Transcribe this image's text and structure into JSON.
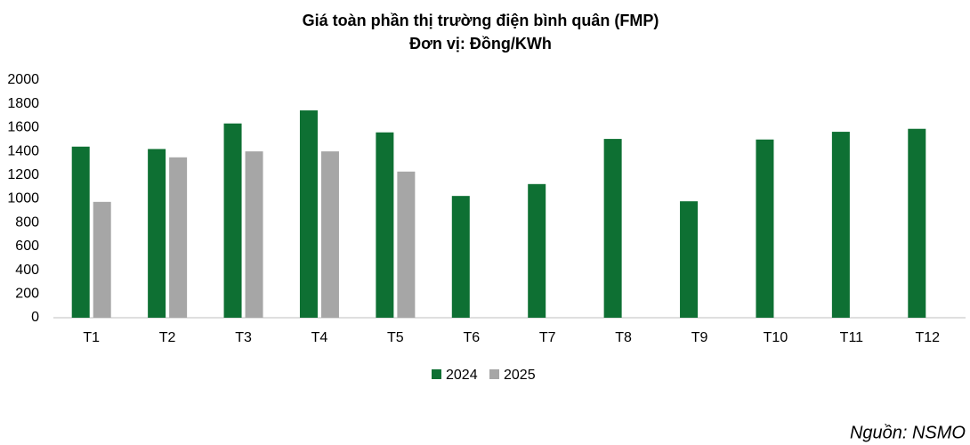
{
  "chart_data": {
    "type": "bar",
    "title": "Giá toàn phần thị trường điện bình quân (FMP)",
    "subtitle": "Đơn vị: Đồng/KWh",
    "categories": [
      "T1",
      "T2",
      "T3",
      "T4",
      "T5",
      "T6",
      "T7",
      "T8",
      "T9",
      "T10",
      "T11",
      "T12"
    ],
    "series": [
      {
        "name": "2024",
        "color": "#0e7033",
        "values": [
          1440,
          1420,
          1635,
          1745,
          1560,
          1025,
          1125,
          1505,
          980,
          1500,
          1565,
          1590
        ]
      },
      {
        "name": "2025",
        "color": "#a6a6a6",
        "values": [
          975,
          1350,
          1400,
          1400,
          1230,
          null,
          null,
          null,
          null,
          null,
          null,
          null
        ]
      }
    ],
    "ylim": [
      0,
      2000
    ],
    "yticks": [
      0,
      200,
      400,
      600,
      800,
      1000,
      1200,
      1400,
      1600,
      1800,
      2000
    ],
    "grid": false,
    "legend": "bottom",
    "source": "Nguồn: NSMO"
  }
}
